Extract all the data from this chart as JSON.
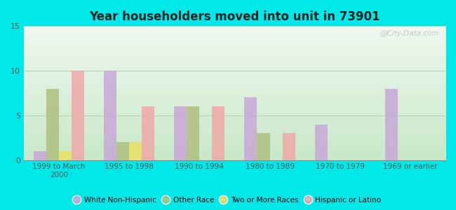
{
  "title": "Year householders moved into unit in 73901",
  "categories": [
    "1999 to March\n2000",
    "1995 to 1998",
    "1990 to 1994",
    "1980 to 1989",
    "1970 to 1979",
    "1969 or earlier"
  ],
  "series": {
    "White Non-Hispanic": [
      1,
      10,
      6,
      7,
      4,
      8
    ],
    "Other Race": [
      8,
      2,
      6,
      3,
      0,
      0
    ],
    "Two or More Races": [
      1,
      2,
      0,
      0,
      0,
      0
    ],
    "Hispanic or Latino": [
      10,
      6,
      6,
      3,
      0,
      0
    ]
  },
  "colors": {
    "White Non-Hispanic": "#c8a8d8",
    "Other Race": "#b0c080",
    "Two or More Races": "#e8e060",
    "Hispanic or Latino": "#f0a8a8"
  },
  "ylim": [
    0,
    15
  ],
  "yticks": [
    0,
    5,
    10,
    15
  ],
  "background_color": "#00e8e8",
  "grad_top": "#f0f8f0",
  "grad_bottom": "#c8e8c8",
  "bar_width": 0.18,
  "watermark": "@City-Data.com"
}
